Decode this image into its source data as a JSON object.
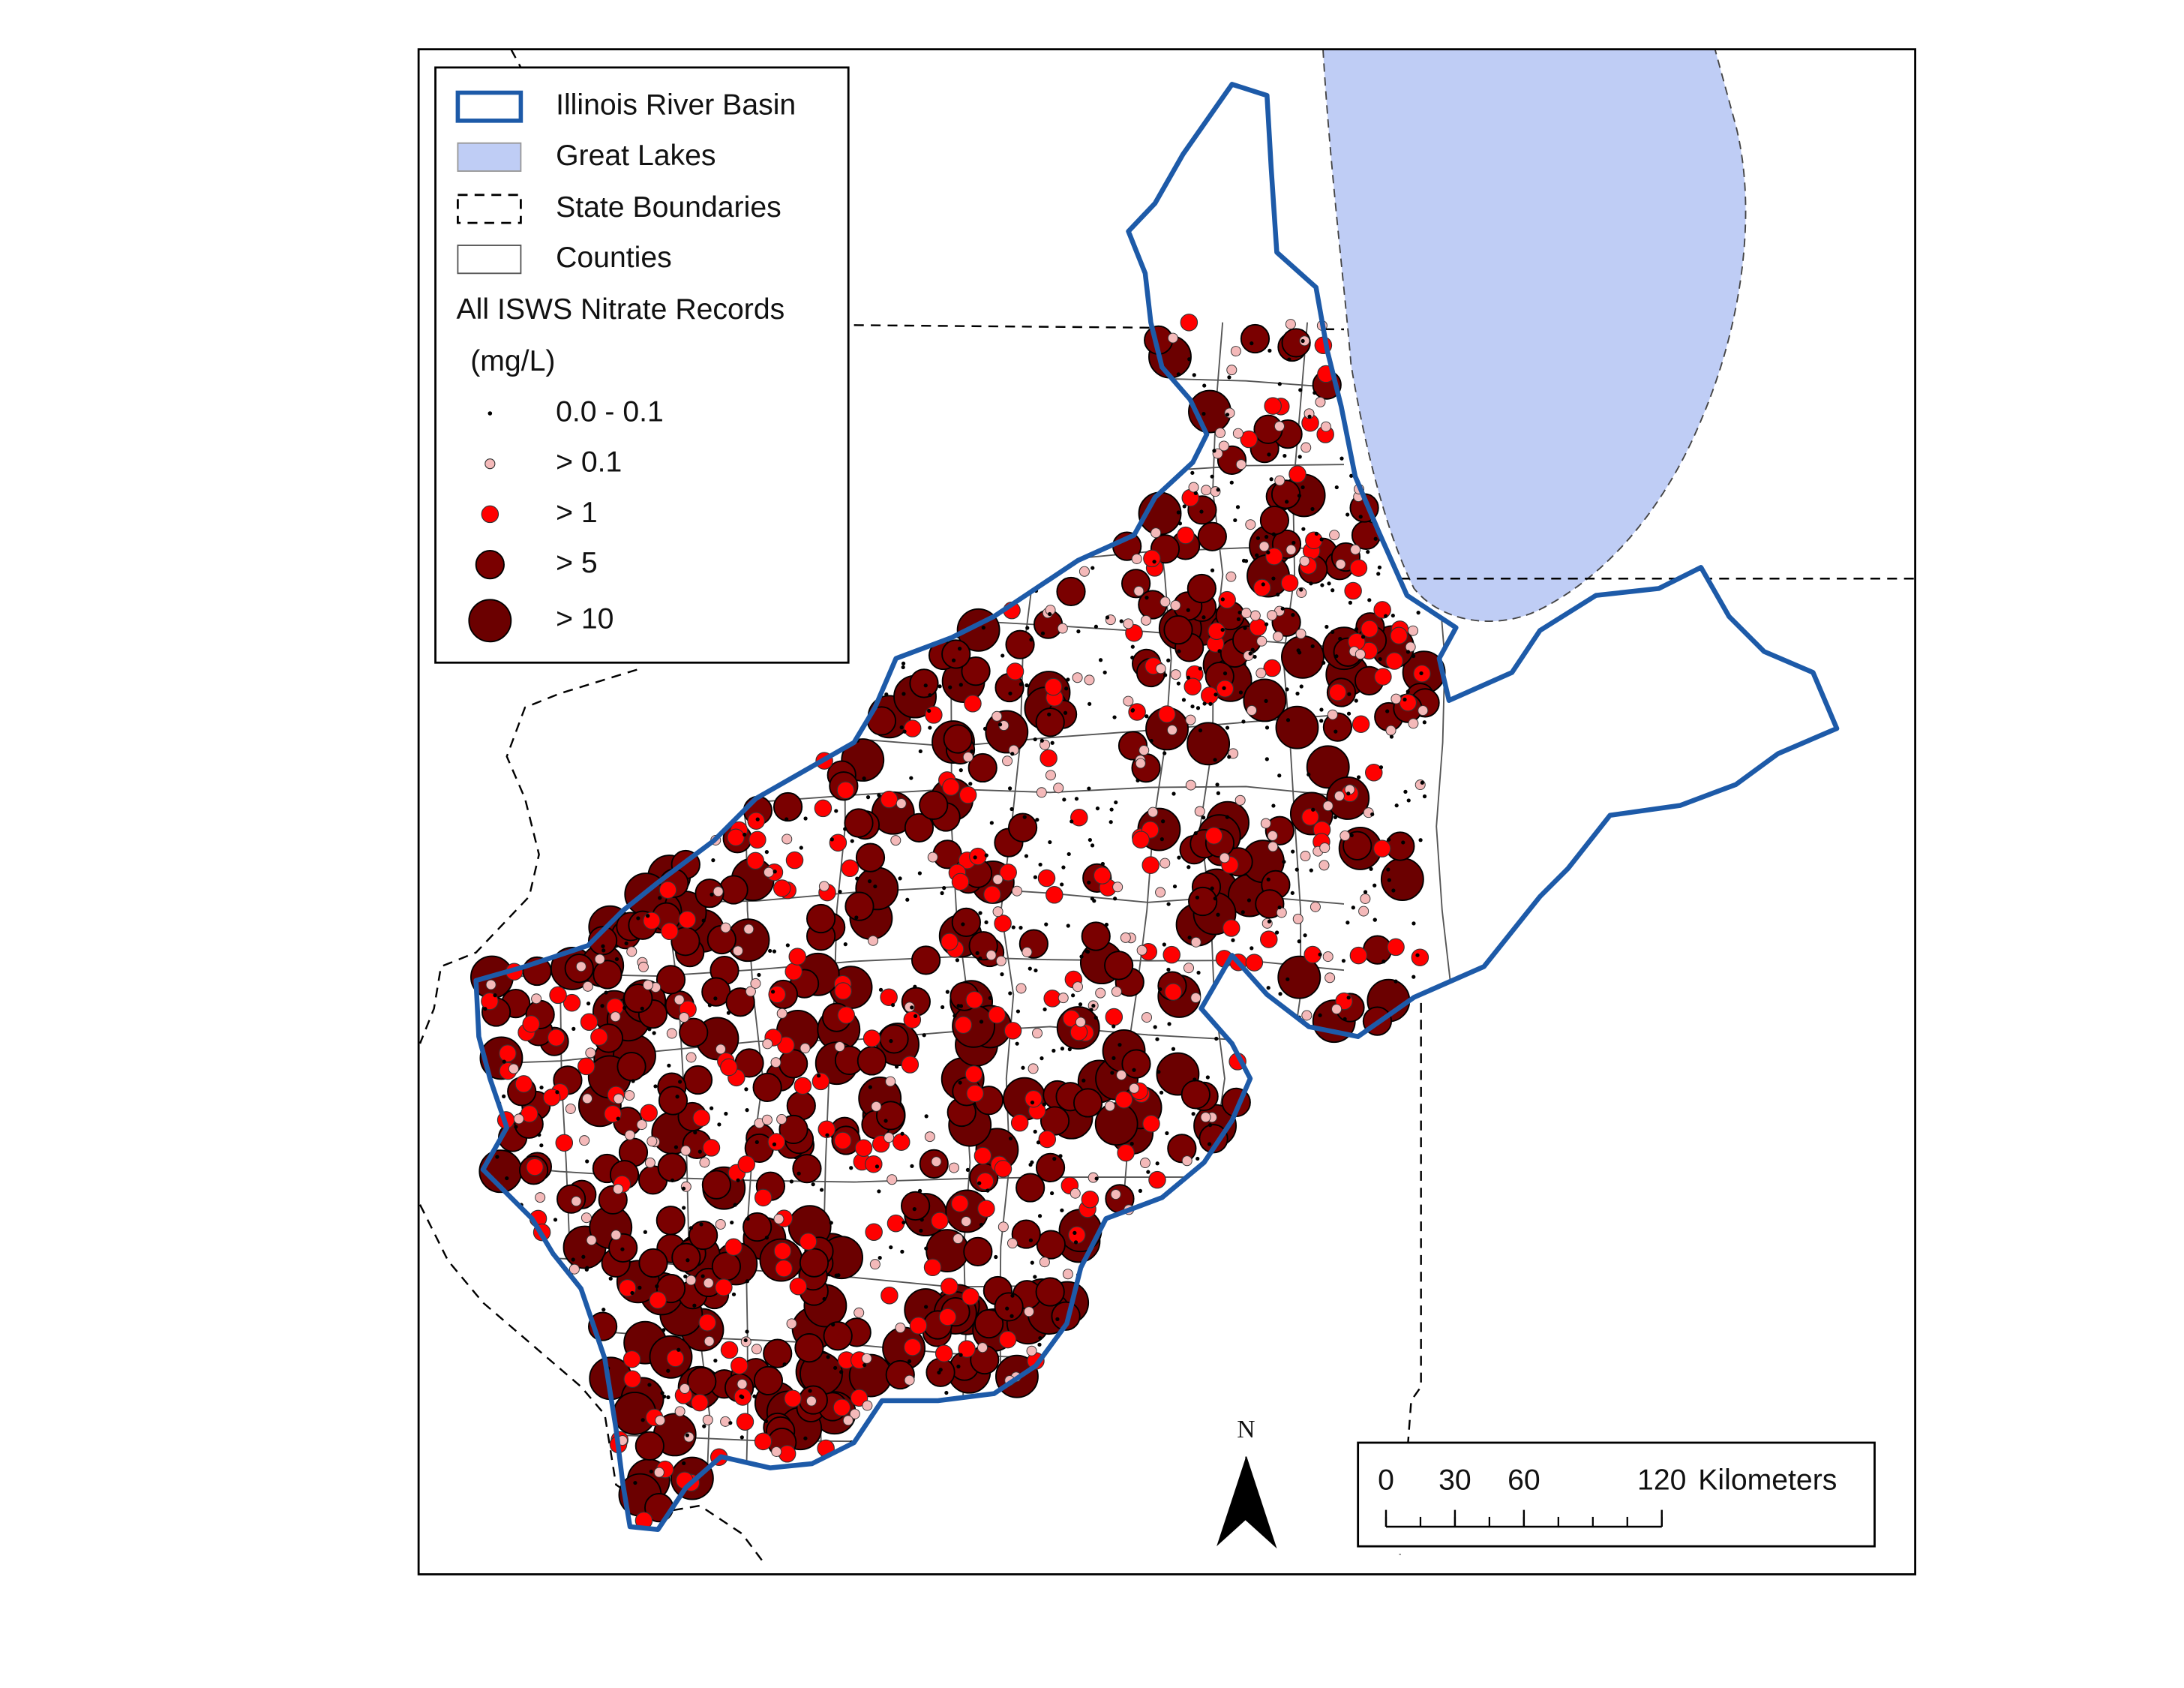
{
  "legend": {
    "items": [
      "Illinois River Basin",
      "Great Lakes",
      "State Boundaries",
      "Counties"
    ],
    "records_title": "All ISWS Nitrate Records",
    "records_unit": "(mg/L)",
    "classes": [
      "0.0 - 0.1",
      "> 0.1",
      "> 1",
      "> 5",
      "> 10"
    ]
  },
  "north_arrow": "N",
  "scale_bar": {
    "ticks": [
      0,
      30,
      60,
      120
    ],
    "unit": "Kilometers"
  }
}
